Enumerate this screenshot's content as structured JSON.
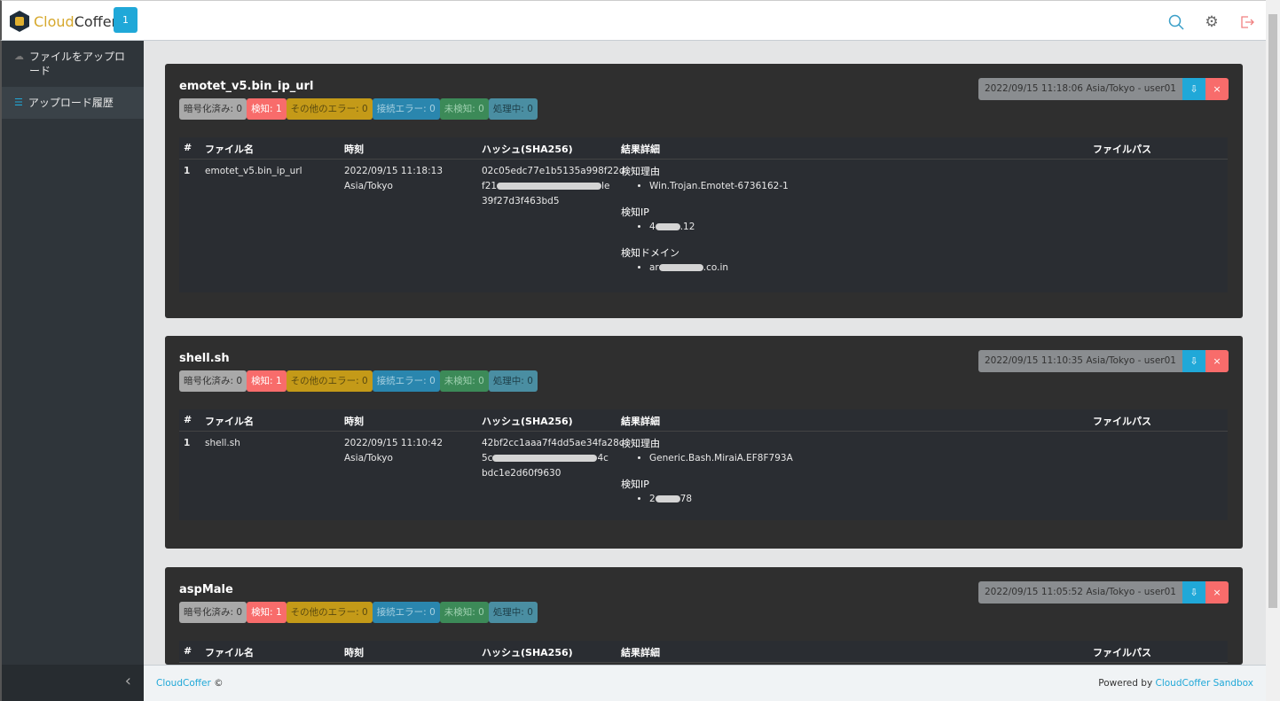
{
  "header": {
    "brand_a": "Cloud",
    "brand_b": "Coffer",
    "badge": "1",
    "icons": [
      "search-icon",
      "gear-icon",
      "logout-icon"
    ]
  },
  "sidebar": {
    "items": [
      {
        "label": "ファイルをアップロード",
        "icon": "cloud-upload-icon"
      },
      {
        "label": "アップロード履歴",
        "icon": "list-icon"
      }
    ],
    "collapse": "‹"
  },
  "footer": {
    "left_link": "CloudCoffer",
    "left_suffix": " ©",
    "right_prefix": "Powered by ",
    "right_link": "CloudCoffer Sandbox"
  },
  "colors": {
    "accent": "#20a8d8",
    "danger": "#f86c6b"
  },
  "table_headers": [
    "#",
    "ファイル名",
    "時刻",
    "ハッシュ(SHA256)",
    "結果詳細",
    "ファイルパス"
  ],
  "cards": [
    {
      "title": "emotet_v5.bin_ip_url",
      "meta": "2022/09/15 11:18:06 Asia/Tokyo - user01",
      "badges": [
        "暗号化済み: 0",
        "検知: 1",
        "その他のエラー: 0",
        "接続エラー: 0",
        "未検知: 0",
        "処理中: 0"
      ],
      "row": {
        "num": "1",
        "name": "emotet_v5.bin_ip_url",
        "time1": "2022/09/15 11:18:13",
        "time2": "Asia/Tokyo",
        "hash1": "02c05edc77e1b5135a998f22d",
        "hash2a": "f21",
        "hash2b": "le",
        "hash3": "39f27d3f463bd5",
        "details": [
          {
            "h": "検知理由",
            "a": "Win.Trojan.Emotet-6736162-1",
            "b": ""
          },
          {
            "h": "検知IP",
            "a": "4",
            "b": ".12"
          },
          {
            "h": "検知ドメイン",
            "a": "ar",
            "b": ".co.in"
          }
        ]
      }
    },
    {
      "title": "shell.sh",
      "meta": "2022/09/15 11:10:35 Asia/Tokyo - user01",
      "badges": [
        "暗号化済み: 0",
        "検知: 1",
        "その他のエラー: 0",
        "接続エラー: 0",
        "未検知: 0",
        "処理中: 0"
      ],
      "row": {
        "num": "1",
        "name": "shell.sh",
        "time1": "2022/09/15 11:10:42",
        "time2": "Asia/Tokyo",
        "hash1": "42bf2cc1aaa7f4dd5ae34fa28c",
        "hash2a": "5c",
        "hash2b": "4c",
        "hash3": "bdc1e2d60f9630",
        "details": [
          {
            "h": "検知理由",
            "a": "Generic.Bash.MiraiA.EF8F793A",
            "b": ""
          },
          {
            "h": "検知IP",
            "a": "2",
            "b": "78"
          }
        ]
      }
    },
    {
      "title": "aspMale",
      "meta": "2022/09/15 11:05:52 Asia/Tokyo - user01",
      "badges": [
        "暗号化済み: 0",
        "検知: 1",
        "その他のエラー: 0",
        "接続エラー: 0",
        "未検知: 0",
        "処理中: 0"
      ]
    }
  ]
}
